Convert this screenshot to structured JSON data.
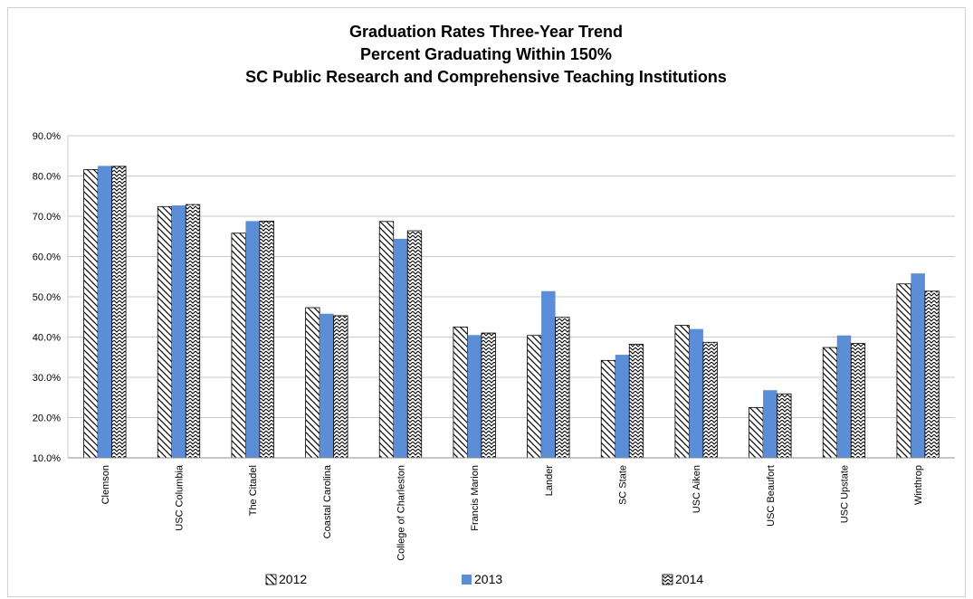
{
  "chart_data": {
    "type": "bar",
    "title_lines": [
      "Graduation Rates Three-Year Trend",
      "Percent Graduating Within 150%",
      "SC Public Research and Comprehensive Teaching Institutions"
    ],
    "categories": [
      "Clemson",
      "USC Columbia",
      "The Citadel",
      "Coastal Carolina",
      "College of Charleston",
      "Francis Marion",
      "Lander",
      "SC State",
      "USC Aiken",
      "USC Beaufort",
      "USC Upstate",
      "Winthrop"
    ],
    "series": [
      {
        "name": "2012",
        "values": [
          81.6,
          72.4,
          65.8,
          47.3,
          68.7,
          42.5,
          40.4,
          34.2,
          42.9,
          22.5,
          37.4,
          53.2
        ],
        "pattern": "diag",
        "color": "#ffffff"
      },
      {
        "name": "2013",
        "values": [
          82.5,
          72.7,
          68.8,
          45.8,
          64.4,
          40.5,
          51.4,
          35.6,
          42.0,
          26.8,
          40.4,
          55.8
        ],
        "pattern": "solid",
        "color": "#5b8ed6"
      },
      {
        "name": "2014",
        "values": [
          82.4,
          72.9,
          68.8,
          45.3,
          66.4,
          41.0,
          44.9,
          38.2,
          38.7,
          25.9,
          38.4,
          51.4
        ],
        "pattern": "zigzag",
        "color": "#ffffff"
      }
    ],
    "y_ticks": [
      "90.0%",
      "80.0%",
      "70.0%",
      "60.0%",
      "50.0%",
      "40.0%",
      "30.0%",
      "20.0%",
      "10.0%"
    ],
    "ylim": [
      10,
      90
    ],
    "y_step": 10,
    "grid": true,
    "legend_position": "bottom"
  }
}
